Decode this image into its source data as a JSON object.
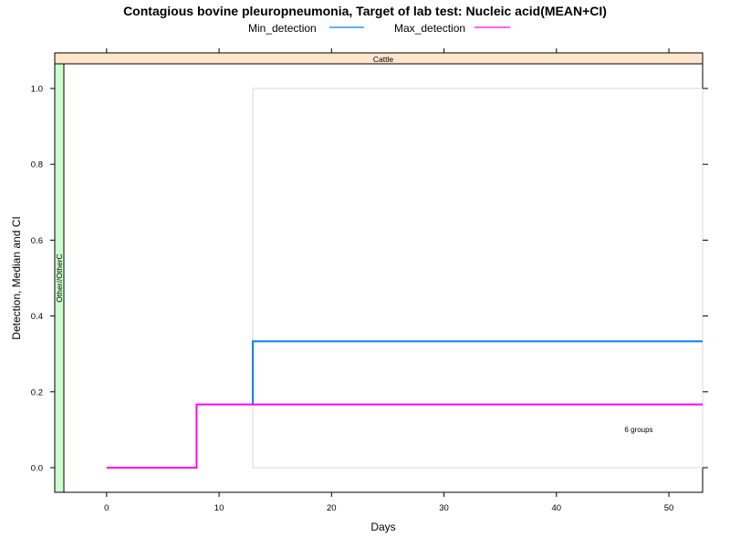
{
  "chart_data": {
    "type": "line",
    "title": "Contagious bovine pleuropneumonia, Target of lab test: Nucleic acid(MEAN+CI)",
    "xlabel": "Days",
    "ylabel": "Detection, Median and CI",
    "xlim": [
      -3.8,
      53
    ],
    "ylim": [
      -0.065,
      1.065
    ],
    "x_ticks": [
      0,
      10,
      20,
      30,
      40,
      50
    ],
    "y_ticks": [
      0.0,
      0.2,
      0.4,
      0.6,
      0.8,
      1.0
    ],
    "y_tick_labels": [
      "0.0",
      "0.2",
      "0.4",
      "0.6",
      "0.8",
      "1.0"
    ],
    "strip_top": "Cattle",
    "strip_left": "Other//OtherC",
    "annotation": "6 groups",
    "legend_position": "top",
    "ci_box": {
      "x": [
        13,
        53
      ],
      "y": [
        0.0,
        1.0
      ]
    },
    "series": [
      {
        "name": "Min_detection",
        "color": "#0080ff",
        "step": true,
        "x": [
          13,
          13,
          53
        ],
        "y": [
          0.1667,
          0.3333,
          0.3333
        ]
      },
      {
        "name": "Max_detection",
        "color": "#ff00ff",
        "step": true,
        "x": [
          0,
          8,
          8,
          53
        ],
        "y": [
          0.0,
          0.0,
          0.1667,
          0.1667
        ]
      }
    ],
    "colors": {
      "strip_top_fill": "#ffe5cc",
      "strip_left_fill": "#ccffcc",
      "ci_box_stroke": "#d9d9d9"
    }
  }
}
